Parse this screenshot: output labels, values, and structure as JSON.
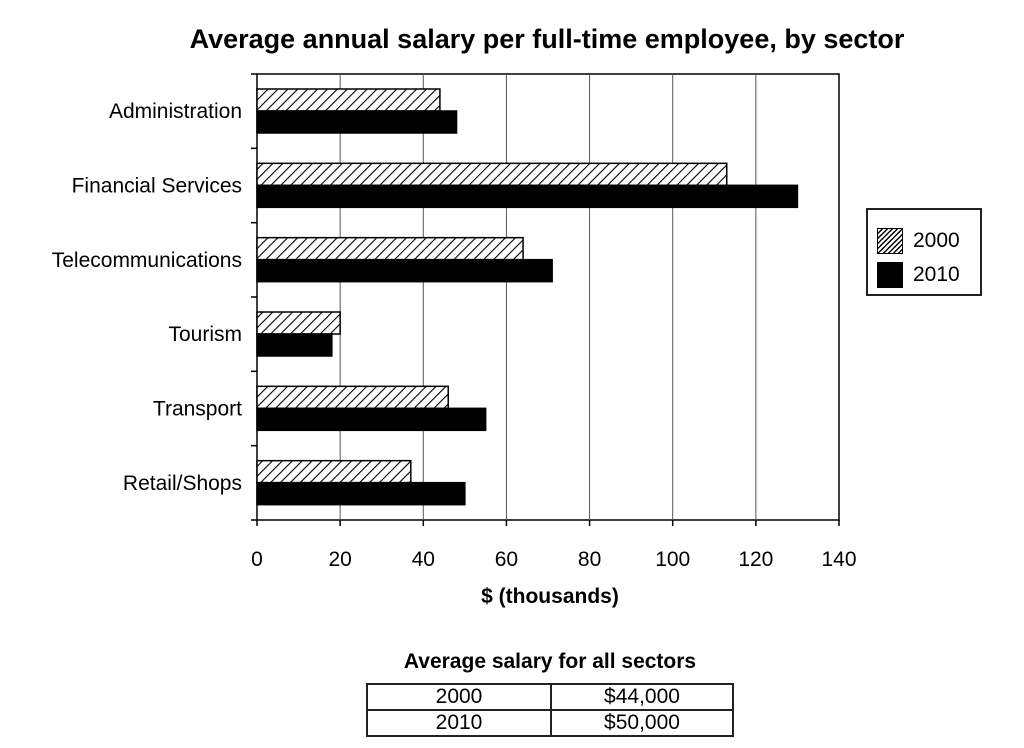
{
  "chart_data": {
    "type": "bar",
    "orientation": "horizontal",
    "title": "Average annual salary per full-time employee, by sector",
    "xlabel": "$ (thousands)",
    "ylabel": "",
    "categories": [
      "Administration",
      "Financial Services",
      "Telecommunications",
      "Tourism",
      "Transport",
      "Retail/Shops"
    ],
    "series": [
      {
        "name": "2000",
        "values": [
          44,
          113,
          64,
          20,
          46,
          37
        ],
        "pattern": "hatched"
      },
      {
        "name": "2010",
        "values": [
          48,
          130,
          71,
          18,
          55,
          50
        ],
        "pattern": "solid"
      }
    ],
    "xlim": [
      0,
      140
    ],
    "xticks": [
      0,
      20,
      40,
      60,
      80,
      100,
      120,
      140
    ],
    "grid": "vertical",
    "legend_position": "right"
  },
  "summary": {
    "title": "Average salary for all sectors",
    "rows": [
      [
        "2000",
        "$44,000"
      ],
      [
        "2010",
        "$50,000"
      ]
    ]
  },
  "colors": {
    "bar_2010": "#000000",
    "hatch": "#000000",
    "grid": "#555555"
  }
}
